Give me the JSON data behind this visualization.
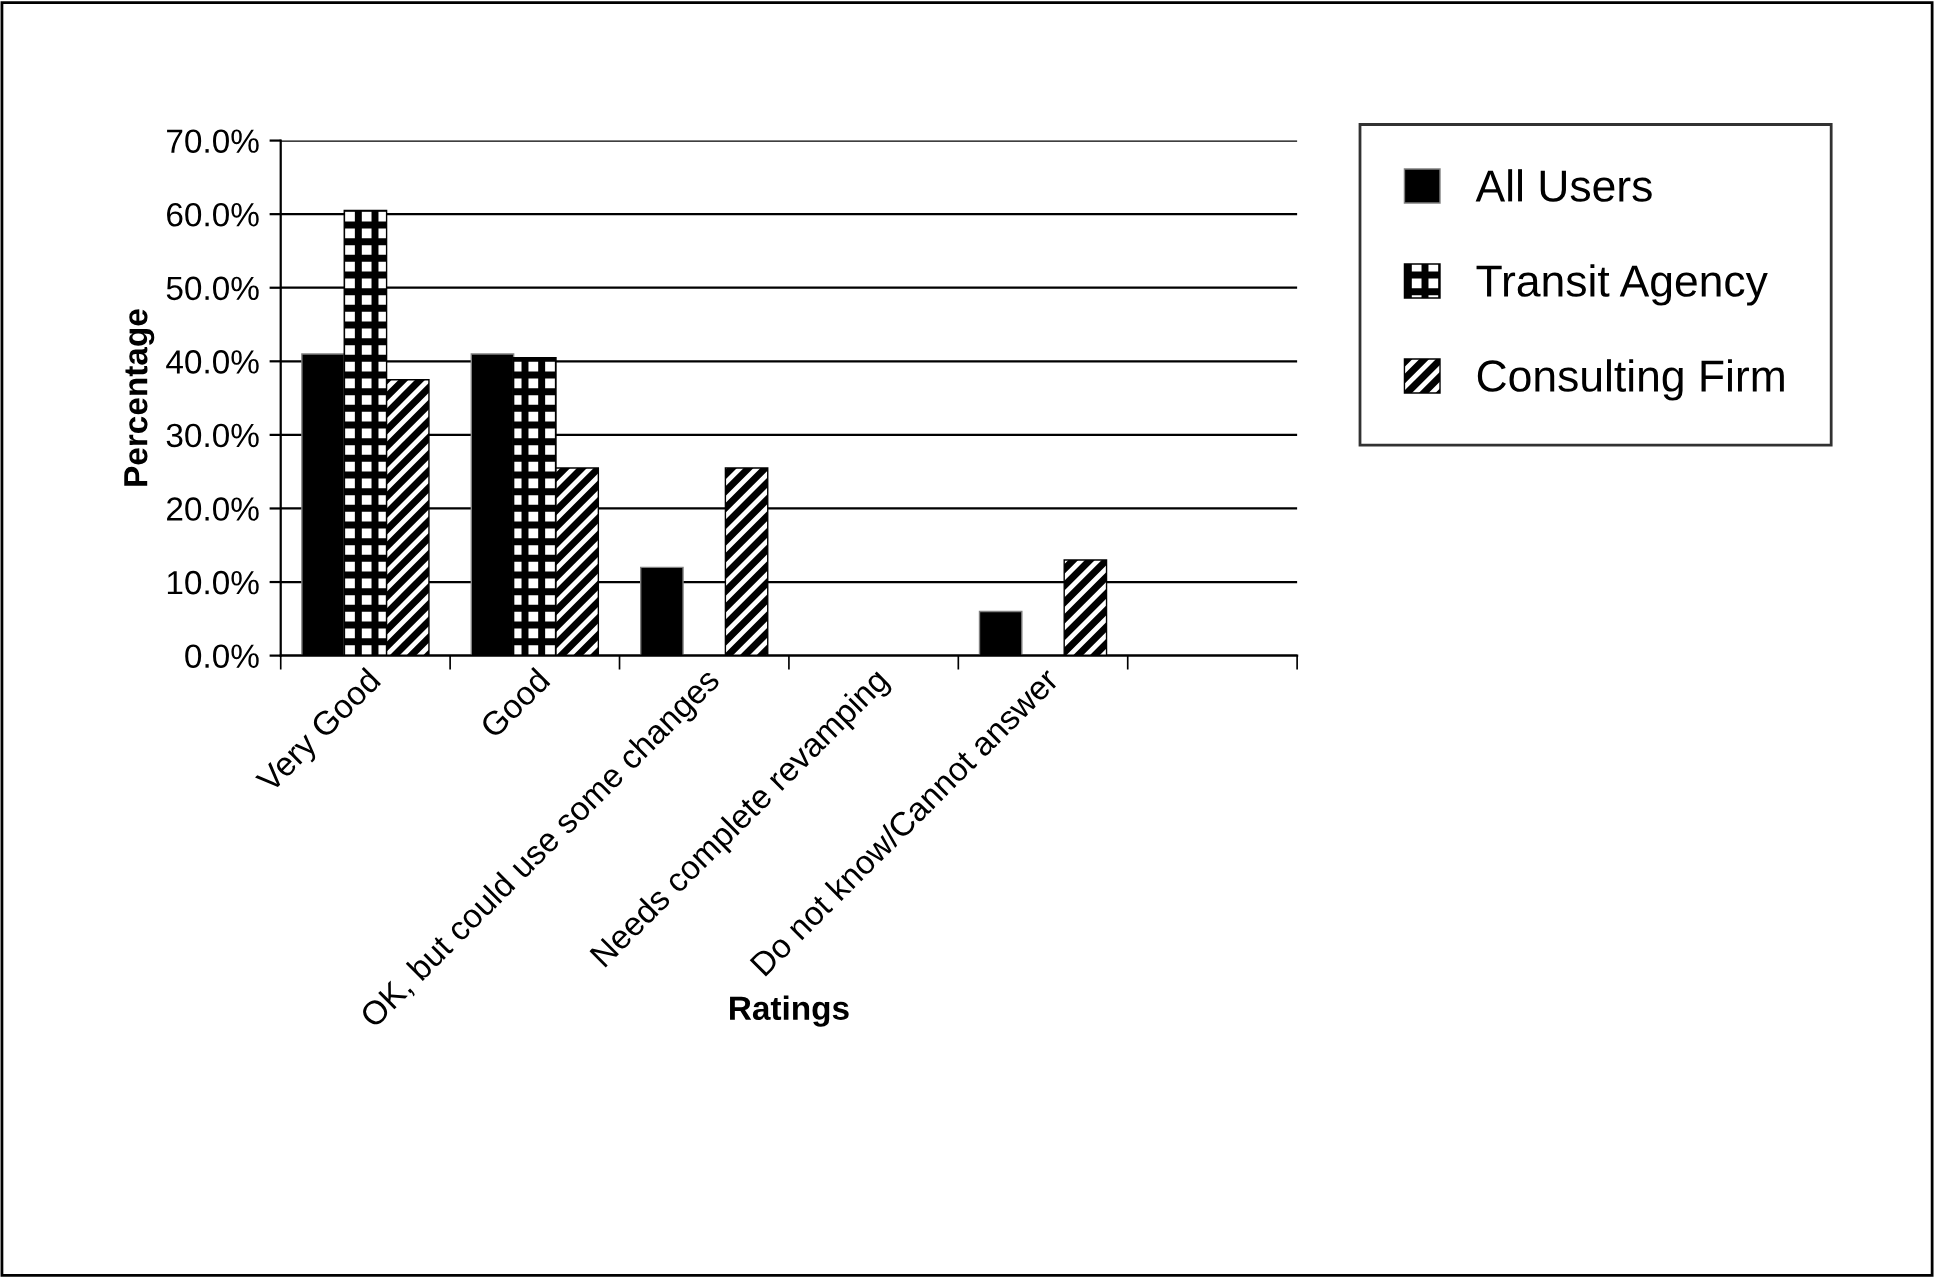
{
  "chart_data": {
    "type": "bar",
    "xlabel": "Ratings",
    "ylabel": "Percentage",
    "categories": [
      "Very Good",
      "Good",
      "OK, but could use some changes",
      "Needs complete revamping",
      "Do not know/Cannot answer",
      null
    ],
    "series": [
      {
        "name": "All Users",
        "color": "#000000",
        "values": [
          41,
          41,
          12,
          0,
          6,
          null
        ]
      },
      {
        "name": "Transit Agency",
        "color": "#000000",
        "values": [
          60.5,
          40.5,
          0,
          0,
          0,
          null
        ]
      },
      {
        "name": "Consulting Firm",
        "color": "#000000",
        "values": [
          37.5,
          25.5,
          25.5,
          0,
          13,
          null
        ]
      }
    ],
    "ylim": [
      0,
      70
    ],
    "yticks": [
      {
        "value": 0,
        "label": "0.0%"
      },
      {
        "value": 10,
        "label": "10.0%"
      },
      {
        "value": 20,
        "label": "20.0%"
      },
      {
        "value": 30,
        "label": "30.0%"
      },
      {
        "value": 40,
        "label": "40.0%"
      },
      {
        "value": 50,
        "label": "50.0%"
      },
      {
        "value": 60,
        "label": "60.0%"
      },
      {
        "value": 70,
        "label": "70.0%"
      }
    ],
    "grid": "y",
    "legend": "right"
  }
}
